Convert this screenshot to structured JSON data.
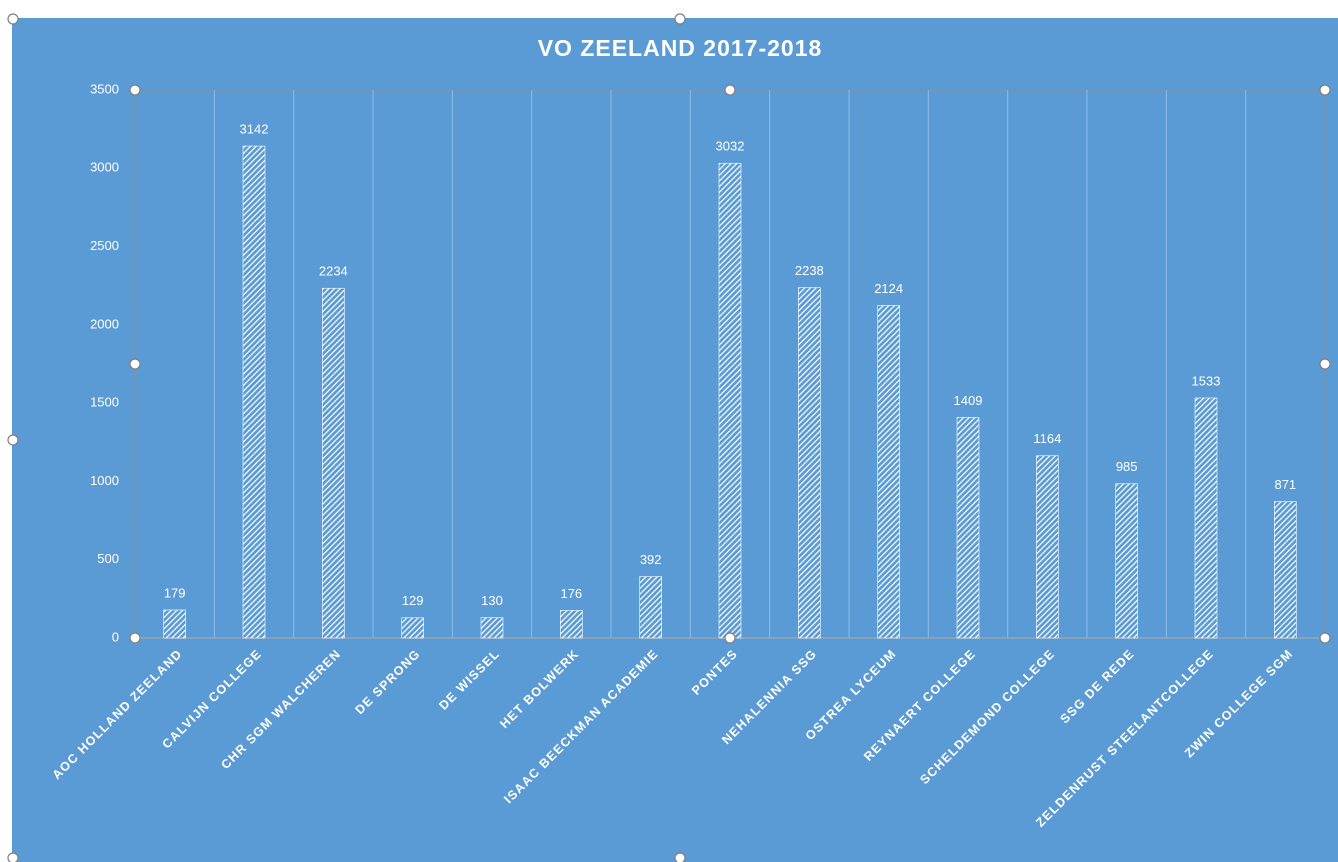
{
  "chart_data": {
    "type": "bar",
    "title": "VO ZEELAND 2017-2018",
    "categories": [
      "AOC HOLLAND ZEELAND",
      "CALVIJN COLLEGE",
      "CHR SGM WALCHEREN",
      "DE SPRONG",
      "DE WISSEL",
      "HET BOLWERK",
      "ISAAC BEECKMAN ACADEMIE",
      "PONTES",
      "NEHALENNIA SSG",
      "OSTREA LYCEUM",
      "REYNAERT COLLEGE",
      "SCHELDEMOND COLLEGE",
      "SSG DE REDE",
      "ZELDENRUST STEELANTCOLLEGE",
      "ZWIN COLLEGE SGM"
    ],
    "values": [
      179,
      3142,
      2234,
      129,
      130,
      176,
      392,
      3032,
      2238,
      2124,
      1409,
      1164,
      985,
      1533,
      871
    ],
    "color": "#ffffff",
    "ylim": [
      0,
      3500
    ],
    "yticks": [
      0,
      500,
      1000,
      1500,
      2000,
      2500,
      3000,
      3500
    ],
    "grid": true
  }
}
